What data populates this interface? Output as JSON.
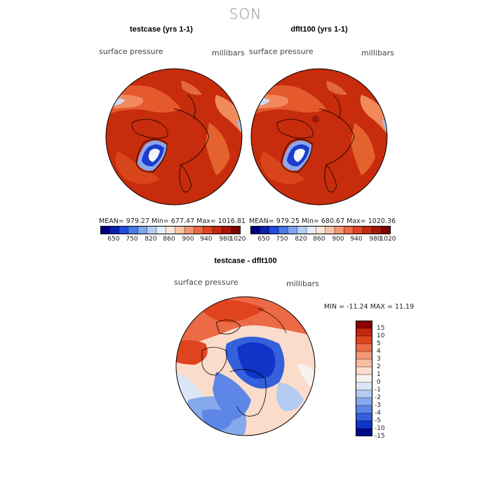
{
  "season_title": "SON",
  "panel_left": {
    "title": "testcase (yrs 1-1)",
    "variable": "surface pressure",
    "units": "millibars",
    "stats": "MEAN= 979.27   Min= 677.47   Max= 1016.81"
  },
  "panel_right": {
    "title": "dflt100 (yrs 1-1)",
    "variable": "surface pressure",
    "units": "millibars",
    "stats": "MEAN= 979.25   Min= 680.67   Max= 1020.36"
  },
  "colorbar_top": {
    "ticks": [
      "650",
      "750",
      "820",
      "860",
      "900",
      "940",
      "980",
      "1020"
    ],
    "colors": [
      "#00007f",
      "#0a1fb0",
      "#1f4be0",
      "#4a7ae8",
      "#7ea5f0",
      "#b4cdf6",
      "#e2ecfb",
      "#fde6d8",
      "#f8c3a6",
      "#f29673",
      "#eb6a46",
      "#e04422",
      "#c52a10",
      "#a81708",
      "#7a0303"
    ]
  },
  "panel_diff": {
    "title": "testcase - dflt100",
    "variable": "surface pressure",
    "units": "millibars",
    "stats": "MIN = -11.24  MAX =   11.19"
  },
  "colorbar_diff": {
    "labels": [
      "15",
      "10",
      "5",
      "4",
      "3",
      "2",
      "1",
      "0",
      "-1",
      "-2",
      "-3",
      "-4",
      "-5",
      "-10",
      "-15"
    ],
    "colors": [
      "#8b0000",
      "#c2260e",
      "#e0441f",
      "#ec6a45",
      "#f39673",
      "#f7bea0",
      "#fbdccb",
      "#f7f4ef",
      "#dbe6f6",
      "#b4cbf2",
      "#86a8ec",
      "#5d86e6",
      "#3460dc",
      "#1233c8",
      "#000b8a"
    ]
  },
  "map_data": {
    "projection": "north-polar-stereographic",
    "colors": {
      "pressure_high": "#c72c0c",
      "pressure_mid": "#e45a2c",
      "pressure_low_band": "#f28a5e",
      "ice_sheet_low": "#1c3ccc",
      "diff_negative": "#1f3fe0",
      "diff_positive": "#e6542a"
    }
  }
}
